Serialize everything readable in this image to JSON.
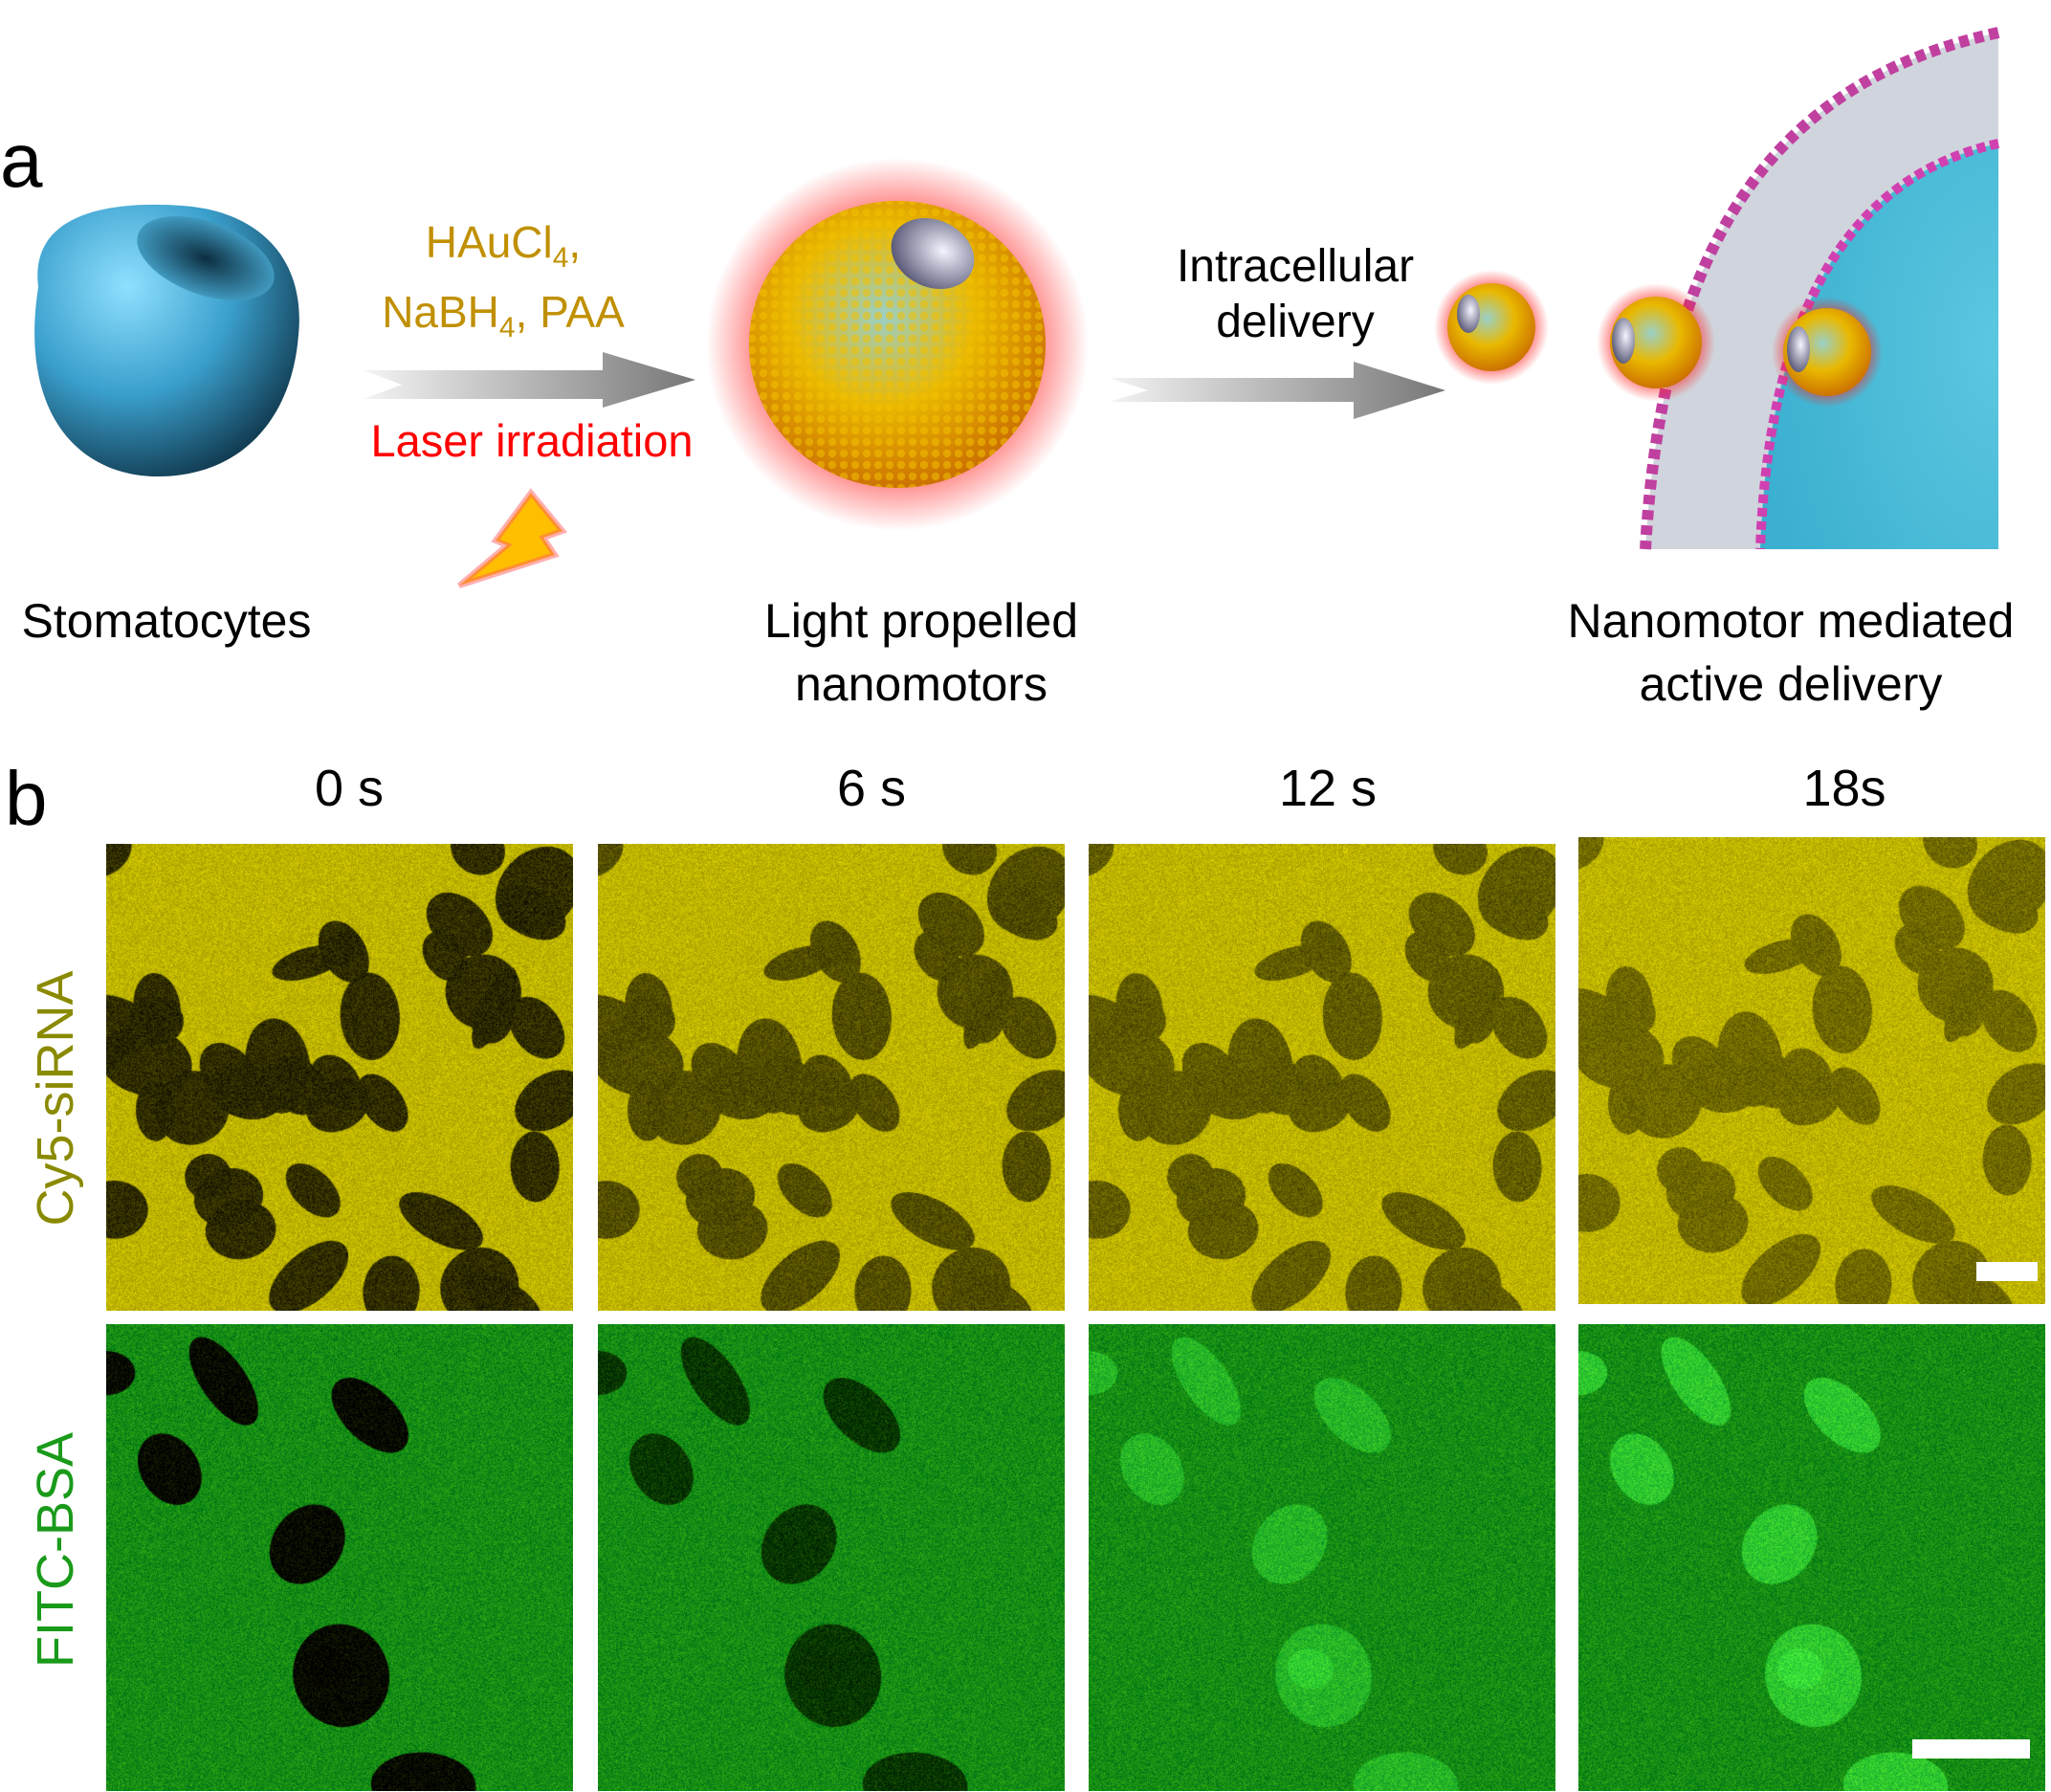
{
  "panel_a": {
    "letter": "a",
    "reagents_line1_main": "HAuCl",
    "reagents_line1_sub": "4",
    "reagents_line1_end": ",",
    "reagents_line2_main": "NaBH",
    "reagents_line2_sub": "4",
    "reagents_line2_end": ", PAA",
    "laser_label": "Laser irradiation",
    "delivery_label_1": "Intracellular",
    "delivery_label_2": "delivery",
    "stomatocytes_label": "Stomatocytes",
    "nanomotors_label_1": "Light propelled",
    "nanomotors_label_2": "nanomotors",
    "mediated_label_1": "Nanomotor mediated",
    "mediated_label_2": "active delivery",
    "colors": {
      "reagents": "#c09000",
      "laser": "#ff0000",
      "stomatocyte": "#3fa9d0",
      "gold": "#f0b400"
    }
  },
  "panel_b": {
    "letter": "b",
    "time_points": [
      "0 s",
      "6 s",
      "12 s",
      "18s"
    ],
    "rows": [
      {
        "label": "Cy5-siRNA",
        "color": "#8a8a00"
      },
      {
        "label": "FITC-BSA",
        "color": "#1a9a1a"
      }
    ]
  }
}
